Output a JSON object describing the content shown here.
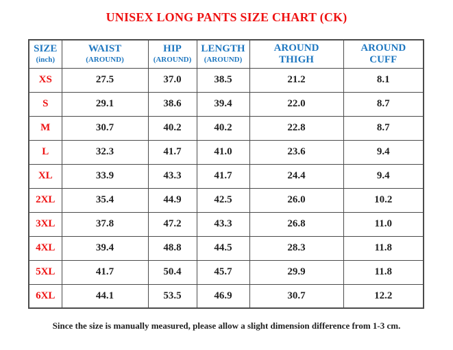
{
  "colors": {
    "red": "#ee1111",
    "blue": "#1e77c0",
    "text": "#1f1f1f",
    "border": "#4a4a4a",
    "background": "#ffffff"
  },
  "title": {
    "text": "UNISEX LONG PANTS SIZE CHART (CK)"
  },
  "chart_data": {
    "type": "table",
    "title": "UNISEX LONG PANTS SIZE CHART (CK)",
    "units": "inch",
    "columns": [
      {
        "label": "SIZE",
        "sub": "(inch)"
      },
      {
        "label": "WAIST",
        "sub": "(AROUND)"
      },
      {
        "label": "HIP",
        "sub": "(AROUND)"
      },
      {
        "label": "LENGTH",
        "sub": "(AROUND)"
      },
      {
        "label": "AROUND",
        "sub": "THIGH"
      },
      {
        "label": "AROUND",
        "sub": "CUFF"
      }
    ],
    "rows": [
      {
        "size": "XS",
        "values": [
          "27.5",
          "37.0",
          "38.5",
          "21.2",
          "8.1"
        ]
      },
      {
        "size": "S",
        "values": [
          "29.1",
          "38.6",
          "39.4",
          "22.0",
          "8.7"
        ]
      },
      {
        "size": "M",
        "values": [
          "30.7",
          "40.2",
          "40.2",
          "22.8",
          "8.7"
        ]
      },
      {
        "size": "L",
        "values": [
          "32.3",
          "41.7",
          "41.0",
          "23.6",
          "9.4"
        ]
      },
      {
        "size": "XL",
        "values": [
          "33.9",
          "43.3",
          "41.7",
          "24.4",
          "9.4"
        ]
      },
      {
        "size": "2XL",
        "values": [
          "35.4",
          "44.9",
          "42.5",
          "26.0",
          "10.2"
        ]
      },
      {
        "size": "3XL",
        "values": [
          "37.8",
          "47.2",
          "43.3",
          "26.8",
          "11.0"
        ]
      },
      {
        "size": "4XL",
        "values": [
          "39.4",
          "48.8",
          "44.5",
          "28.3",
          "11.8"
        ]
      },
      {
        "size": "5XL",
        "values": [
          "41.7",
          "50.4",
          "45.7",
          "29.9",
          "11.8"
        ]
      },
      {
        "size": "6XL",
        "values": [
          "44.1",
          "53.5",
          "46.9",
          "30.7",
          "12.2"
        ]
      }
    ]
  },
  "footer": {
    "text": "Since the size is manually measured, please allow a slight dimension difference from 1-3 cm."
  }
}
